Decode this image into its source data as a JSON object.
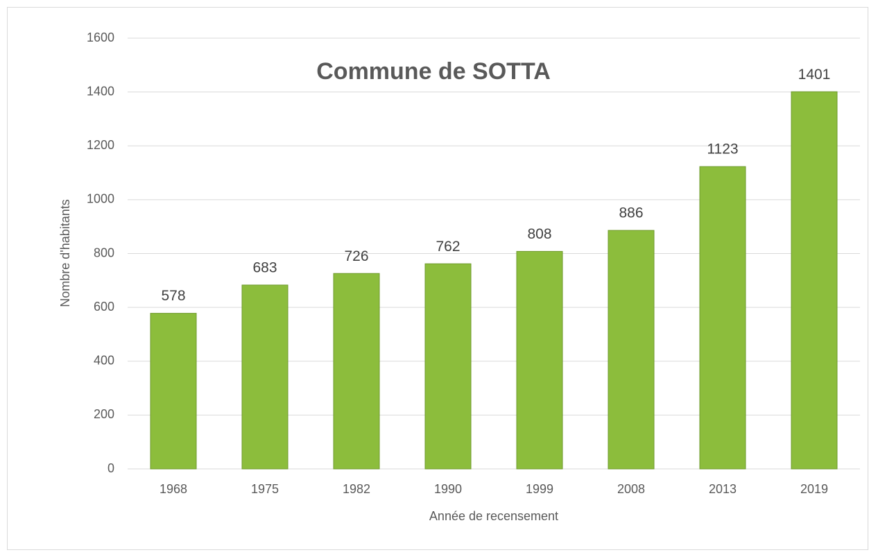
{
  "chart_data": {
    "type": "bar",
    "title": "Commune de SOTTA",
    "x_label": "Année de recensement",
    "y_label": "Nombre d'habitants",
    "categories": [
      "1968",
      "1975",
      "1982",
      "1990",
      "1999",
      "2008",
      "2013",
      "2019"
    ],
    "values": [
      578,
      683,
      726,
      762,
      808,
      886,
      1123,
      1401
    ],
    "color": "#8cbd3c",
    "ylim": [
      0,
      1600
    ],
    "yticks": [
      0,
      200,
      400,
      600,
      800,
      1000,
      1200,
      1400,
      1600
    ],
    "grid": true
  }
}
